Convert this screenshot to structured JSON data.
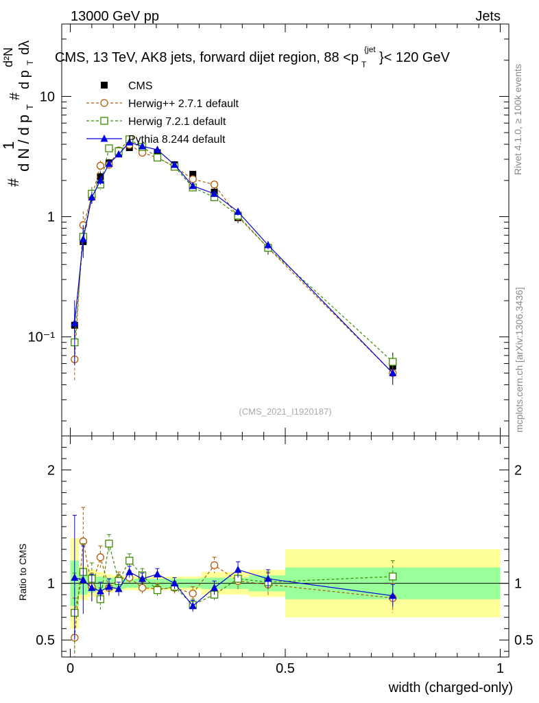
{
  "header": {
    "left": "13000 GeV pp",
    "right": "Jets"
  },
  "side_labels": {
    "rivet": "Rivet 4.1.0, ≥ 100k events",
    "mcplots": "mcplots.cern.ch [arXiv:1306.3436]"
  },
  "chart_data": {
    "type": "scatter",
    "title": "CMS, 13 TeV, AK8 jets, forward dijet region, 88 <p",
    "title_sup": "{jet",
    "title_sub": "T",
    "title_end": "}< 120 GeV",
    "ylabel_main": "1 / dN/dp_T  d²N / dp_T dλ",
    "watermark": "(CMS_2021_I1920187)",
    "xlabel": "width (charged-only)",
    "ylabel_ratio": "Ratio to CMS",
    "xlim": [
      -0.02,
      1.02
    ],
    "ylim_main": [
      0.015,
      40
    ],
    "ylim_ratio": [
      0.35,
      2.3
    ],
    "x_ticks": [
      "0",
      "0.5",
      "1"
    ],
    "y_ticks_main": [
      "10",
      "1",
      "10⁻¹"
    ],
    "y_ticks_ratio": [
      "2",
      "1",
      "0.5"
    ],
    "x": [
      0.01,
      0.03,
      0.05,
      0.07,
      0.09,
      0.1125,
      0.1375,
      0.1675,
      0.2025,
      0.2425,
      0.285,
      0.335,
      0.39,
      0.46,
      0.75
    ],
    "cms_bins": [
      [
        0.0,
        0.02
      ],
      [
        0.02,
        0.04
      ],
      [
        0.04,
        0.06
      ],
      [
        0.06,
        0.08
      ],
      [
        0.08,
        0.1
      ],
      [
        0.1,
        0.125
      ],
      [
        0.125,
        0.15
      ],
      [
        0.15,
        0.185
      ],
      [
        0.185,
        0.22
      ],
      [
        0.22,
        0.265
      ],
      [
        0.265,
        0.305
      ],
      [
        0.305,
        0.365
      ],
      [
        0.365,
        0.415
      ],
      [
        0.415,
        0.5
      ],
      [
        0.5,
        1.0
      ]
    ],
    "cms_values": [
      0.125,
      0.62,
      1.5,
      2.15,
      2.8,
      3.4,
      3.75,
      3.7,
      3.4,
      2.7,
      2.25,
      1.6,
      0.98,
      0.55,
      0.057
    ],
    "band_stat": [
      0.2,
      0.1,
      0.08,
      0.06,
      0.05,
      0.05,
      0.04,
      0.04,
      0.04,
      0.04,
      0.04,
      0.05,
      0.05,
      0.07,
      0.14
    ],
    "band_total": [
      0.4,
      0.15,
      0.12,
      0.1,
      0.08,
      0.07,
      0.06,
      0.06,
      0.06,
      0.06,
      0.06,
      0.1,
      0.1,
      0.12,
      0.3
    ],
    "series": [
      {
        "name": "CMS",
        "color": "#000000",
        "marker": "filled-square"
      },
      {
        "name": "Herwig++ 2.7.1 default",
        "color": "#b35900",
        "marker": "open-circle",
        "dashed": true,
        "values": [
          0.065,
          0.85,
          1.45,
          2.65,
          2.7,
          3.55,
          3.95,
          3.4,
          3.1,
          2.6,
          2.05,
          1.85,
          1.0,
          0.55,
          0.05
        ],
        "ratio": [
          0.52,
          1.37,
          0.97,
          1.23,
          0.96,
          1.04,
          1.05,
          0.96,
          0.95,
          0.96,
          0.91,
          1.16,
          1.02,
          0.99,
          0.87
        ],
        "err": [
          0.35,
          0.3,
          0.12,
          0.1,
          0.08,
          0.06,
          0.06,
          0.05,
          0.05,
          0.05,
          0.06,
          0.07,
          0.08,
          0.1,
          0.13
        ]
      },
      {
        "name": "Herwig 7.2.1 default",
        "color": "#3a8a00",
        "marker": "open-square",
        "dashed": true,
        "values": [
          0.09,
          0.68,
          1.55,
          1.85,
          3.7,
          3.5,
          4.4,
          3.8,
          3.1,
          2.6,
          1.75,
          1.45,
          1.02,
          0.55,
          0.062
        ],
        "ratio": [
          0.74,
          1.1,
          1.04,
          0.86,
          1.35,
          1.02,
          1.2,
          1.07,
          0.94,
          0.97,
          0.81,
          0.9,
          1.04,
          1.01,
          1.06
        ],
        "err": [
          0.35,
          0.25,
          0.14,
          0.1,
          0.08,
          0.06,
          0.06,
          0.06,
          0.05,
          0.05,
          0.05,
          0.06,
          0.07,
          0.09,
          0.14
        ]
      },
      {
        "name": "Pythia 8.244 default",
        "color": "#0000dd",
        "marker": "filled-triangle",
        "dashed": false,
        "values": [
          0.13,
          0.65,
          1.45,
          2.0,
          2.75,
          3.3,
          4.15,
          3.85,
          3.6,
          2.7,
          1.8,
          1.55,
          1.1,
          0.58,
          0.05
        ],
        "ratio": [
          1.05,
          1.03,
          0.96,
          0.93,
          0.97,
          0.95,
          1.1,
          1.04,
          1.08,
          1.0,
          0.8,
          0.96,
          1.12,
          1.04,
          0.89
        ],
        "err": [
          0.55,
          0.3,
          0.12,
          0.08,
          0.07,
          0.06,
          0.05,
          0.05,
          0.05,
          0.05,
          0.05,
          0.06,
          0.07,
          0.08,
          0.1
        ]
      }
    ]
  }
}
